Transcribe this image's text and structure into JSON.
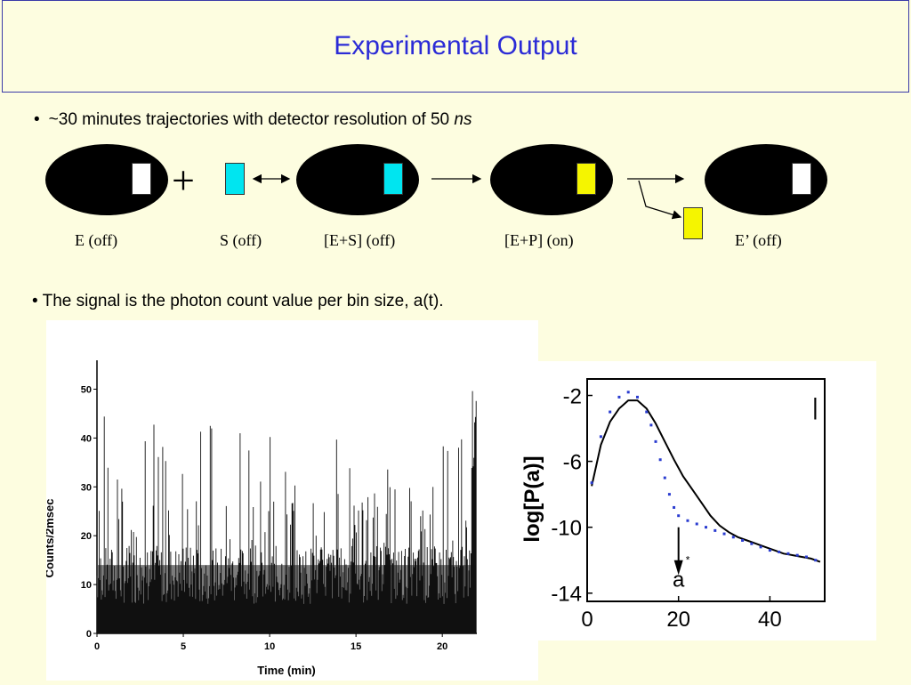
{
  "slide": {
    "title": "Experimental Output",
    "bullet1": {
      "marker": "•",
      "text": "~30 minutes trajectories with detector resolution of 50 ",
      "unit": "ns"
    },
    "bullet2": "• The signal is the photon count value per bin size, a(t).",
    "plus_sign": "+",
    "labels": {
      "enzyme_off": "E (off)",
      "substrate_off": "S (off)",
      "complex_es": "[E+S] (off)",
      "complex_ep": "[E+P] (on)",
      "enzyme_prime": "E’ (off)"
    },
    "colors": {
      "title": "#2b2bd6",
      "background": "#fdfde0",
      "white_tag": "#ffffff",
      "cyan_tag": "#00e5f0",
      "yellow_tag": "#f5f500"
    }
  },
  "trace_plot": {
    "ylabel": "Counts/2msec",
    "xlabel": "Time (min)",
    "y_ticks": [
      "0",
      "10",
      "20",
      "30",
      "40",
      "50"
    ],
    "x_ticks": [
      "0",
      "5",
      "10",
      "15",
      "20"
    ],
    "ylim": [
      0,
      55
    ],
    "xlim": [
      0,
      22
    ]
  },
  "chart_data": {
    "type": "scatter",
    "ylabel": "log[P(a)]",
    "xlabel": "",
    "y_ticks": [
      "-2",
      "-6",
      "-10",
      "-14"
    ],
    "x_ticks": [
      "0",
      "20",
      "40"
    ],
    "xlim": [
      0,
      52
    ],
    "ylim": [
      -14.5,
      -1
    ],
    "annotation": "a",
    "annotation_sub": "*",
    "annotation_x": 20,
    "corner_mark": "|",
    "series": [
      {
        "kind": "line",
        "x": [
          1,
          3,
          5,
          7,
          9,
          11,
          13,
          15,
          17,
          19,
          21,
          23,
          25,
          27,
          29,
          31,
          33,
          35,
          37,
          39,
          41,
          43,
          45,
          47,
          49,
          51
        ],
        "y": [
          -7.5,
          -5.0,
          -3.6,
          -2.8,
          -2.3,
          -2.3,
          -2.8,
          -3.7,
          -4.8,
          -5.9,
          -6.9,
          -7.7,
          -8.5,
          -9.3,
          -9.9,
          -10.3,
          -10.6,
          -10.8,
          -11.0,
          -11.2,
          -11.4,
          -11.6,
          -11.7,
          -11.8,
          -11.9,
          -12.1
        ]
      },
      {
        "kind": "points",
        "x": [
          1,
          3,
          5,
          7,
          9,
          11,
          13,
          14,
          15,
          16,
          17,
          18,
          19,
          20,
          22,
          24,
          26,
          28,
          30,
          32,
          34,
          36,
          38,
          40,
          42,
          44,
          46,
          48,
          50
        ],
        "y": [
          -7.3,
          -4.5,
          -3.0,
          -2.1,
          -1.8,
          -2.1,
          -3.0,
          -3.8,
          -4.8,
          -5.9,
          -7.0,
          -8.0,
          -8.8,
          -9.3,
          -9.6,
          -9.8,
          -10.0,
          -10.2,
          -10.4,
          -10.6,
          -10.8,
          -11.0,
          -11.2,
          -11.4,
          -11.5,
          -11.6,
          -11.7,
          -11.8,
          -12.0
        ]
      }
    ]
  }
}
